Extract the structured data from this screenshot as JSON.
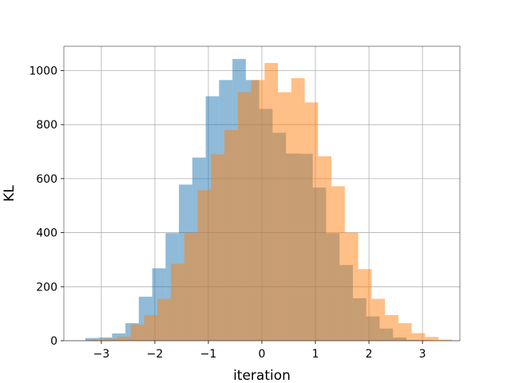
{
  "chart_data": {
    "type": "histogram",
    "title": "",
    "xlabel": "iteration",
    "ylabel": "KL",
    "xlim": [
      -3.7,
      3.7
    ],
    "ylim": [
      0,
      1090
    ],
    "xticks": [
      -3,
      -2,
      -1,
      0,
      1,
      2,
      3
    ],
    "yticks": [
      0,
      200,
      400,
      600,
      800,
      1000
    ],
    "grid": true,
    "bar_alpha": 0.5,
    "series": [
      {
        "color": "#1f77b4",
        "bins": [
          {
            "x0": -3.3,
            "x1": -3.05,
            "count": 10
          },
          {
            "x0": -3.05,
            "x1": -2.8,
            "count": 12
          },
          {
            "x0": -2.8,
            "x1": -2.55,
            "count": 27
          },
          {
            "x0": -2.55,
            "x1": -2.3,
            "count": 65
          },
          {
            "x0": -2.3,
            "x1": -2.05,
            "count": 163
          },
          {
            "x0": -2.05,
            "x1": -1.8,
            "count": 268
          },
          {
            "x0": -1.8,
            "x1": -1.55,
            "count": 398
          },
          {
            "x0": -1.55,
            "x1": -1.3,
            "count": 578
          },
          {
            "x0": -1.3,
            "x1": -1.05,
            "count": 678
          },
          {
            "x0": -1.05,
            "x1": -0.8,
            "count": 905
          },
          {
            "x0": -0.8,
            "x1": -0.55,
            "count": 965
          },
          {
            "x0": -0.55,
            "x1": -0.3,
            "count": 1043
          },
          {
            "x0": -0.3,
            "x1": -0.05,
            "count": 965
          },
          {
            "x0": -0.05,
            "x1": 0.2,
            "count": 858
          },
          {
            "x0": 0.2,
            "x1": 0.45,
            "count": 770
          },
          {
            "x0": 0.45,
            "x1": 0.7,
            "count": 693
          },
          {
            "x0": 0.7,
            "x1": 0.95,
            "count": 692
          },
          {
            "x0": 0.95,
            "x1": 1.2,
            "count": 567
          },
          {
            "x0": 1.2,
            "x1": 1.45,
            "count": 398
          },
          {
            "x0": 1.45,
            "x1": 1.7,
            "count": 280
          },
          {
            "x0": 1.7,
            "x1": 1.95,
            "count": 157
          },
          {
            "x0": 1.95,
            "x1": 2.2,
            "count": 90
          },
          {
            "x0": 2.2,
            "x1": 2.45,
            "count": 45
          },
          {
            "x0": 2.45,
            "x1": 2.7,
            "count": 12
          },
          {
            "x0": 2.7,
            "x1": 2.95,
            "count": 3
          },
          {
            "x0": 2.95,
            "x1": 3.2,
            "count": 2
          }
        ]
      },
      {
        "color": "#ff7f0e",
        "bins": [
          {
            "x0": -3.2,
            "x1": -2.95,
            "count": 3
          },
          {
            "x0": -2.95,
            "x1": -2.7,
            "count": 8
          },
          {
            "x0": -2.7,
            "x1": -2.45,
            "count": 15
          },
          {
            "x0": -2.45,
            "x1": -2.2,
            "count": 60
          },
          {
            "x0": -2.2,
            "x1": -1.95,
            "count": 95
          },
          {
            "x0": -1.95,
            "x1": -1.7,
            "count": 155
          },
          {
            "x0": -1.7,
            "x1": -1.45,
            "count": 285
          },
          {
            "x0": -1.45,
            "x1": -1.2,
            "count": 400
          },
          {
            "x0": -1.2,
            "x1": -0.95,
            "count": 557
          },
          {
            "x0": -0.95,
            "x1": -0.7,
            "count": 690
          },
          {
            "x0": -0.7,
            "x1": -0.45,
            "count": 780
          },
          {
            "x0": -0.45,
            "x1": -0.2,
            "count": 920
          },
          {
            "x0": -0.2,
            "x1": 0.05,
            "count": 965
          },
          {
            "x0": 0.05,
            "x1": 0.3,
            "count": 1028
          },
          {
            "x0": 0.3,
            "x1": 0.55,
            "count": 920
          },
          {
            "x0": 0.55,
            "x1": 0.8,
            "count": 972
          },
          {
            "x0": 0.8,
            "x1": 1.05,
            "count": 882
          },
          {
            "x0": 1.05,
            "x1": 1.3,
            "count": 683
          },
          {
            "x0": 1.3,
            "x1": 1.55,
            "count": 572
          },
          {
            "x0": 1.55,
            "x1": 1.8,
            "count": 400
          },
          {
            "x0": 1.8,
            "x1": 2.05,
            "count": 265
          },
          {
            "x0": 2.05,
            "x1": 2.3,
            "count": 155
          },
          {
            "x0": 2.3,
            "x1": 2.55,
            "count": 95
          },
          {
            "x0": 2.55,
            "x1": 2.8,
            "count": 65
          },
          {
            "x0": 2.8,
            "x1": 3.05,
            "count": 28
          },
          {
            "x0": 3.05,
            "x1": 3.3,
            "count": 14
          },
          {
            "x0": 3.3,
            "x1": 3.55,
            "count": 4
          }
        ]
      }
    ]
  }
}
